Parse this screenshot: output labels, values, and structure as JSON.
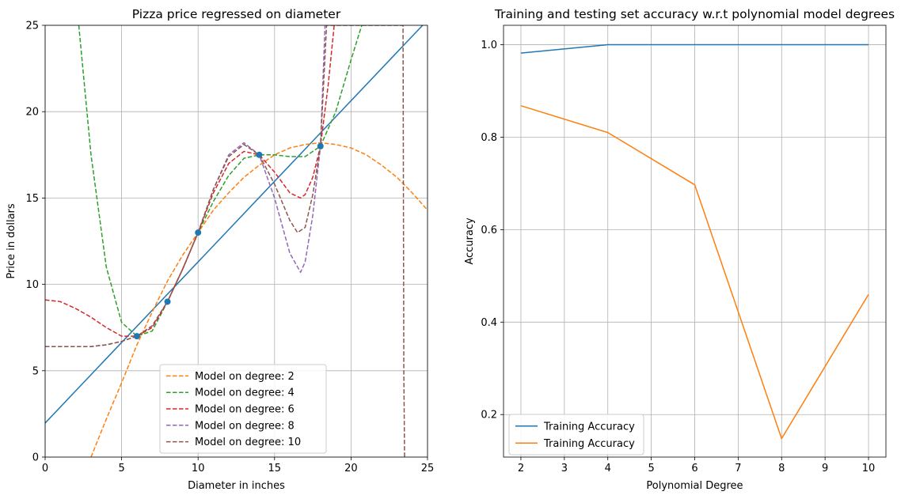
{
  "chart_data": [
    {
      "type": "line",
      "title": "Pizza price regressed on diameter",
      "xlabel": "Diameter in inches",
      "ylabel": "Price in dollars",
      "xlim": [
        0,
        25
      ],
      "ylim": [
        0,
        25
      ],
      "xticks": [
        0,
        5,
        10,
        15,
        20,
        25
      ],
      "yticks": [
        0,
        5,
        10,
        15,
        20,
        25
      ],
      "grid": true,
      "legend_position": "bottom-center",
      "scatter": {
        "color": "#1f77b4",
        "x": [
          6,
          8,
          10,
          14,
          18
        ],
        "y": [
          7,
          9,
          13,
          17.5,
          18
        ]
      },
      "linear_fit": {
        "color": "#1f77b4",
        "x": [
          0,
          25
        ],
        "y": [
          1.97,
          25.3
        ]
      },
      "series": [
        {
          "name": "Model on degree: 2",
          "color": "#ff7f0e",
          "x": [
            3.0,
            4,
            5,
            6,
            7,
            8,
            9,
            10,
            11,
            12,
            13,
            14,
            15,
            16,
            17,
            18,
            19,
            20,
            21,
            22,
            23,
            24,
            25
          ],
          "y": [
            0,
            2.2,
            4.3,
            6.5,
            8.4,
            10.2,
            11.7,
            13.0,
            14.3,
            15.3,
            16.2,
            16.9,
            17.5,
            17.9,
            18.1,
            18.2,
            18.1,
            17.9,
            17.5,
            16.9,
            16.2,
            15.3,
            14.3
          ]
        },
        {
          "name": "Model on degree: 4",
          "color": "#2ca02c",
          "x": [
            2.2,
            3,
            4,
            5,
            6,
            7,
            8,
            9,
            10,
            11,
            12,
            13,
            14,
            15,
            16,
            17,
            18,
            19,
            20,
            20.7
          ],
          "y": [
            25,
            17.5,
            11.0,
            7.8,
            7.0,
            7.3,
            9.0,
            10.9,
            13.0,
            14.8,
            16.3,
            17.3,
            17.5,
            17.5,
            17.4,
            17.4,
            18.0,
            20.0,
            23.0,
            25
          ]
        },
        {
          "name": "Model on degree: 6",
          "color": "#d62728",
          "x": [
            0,
            1,
            2,
            3,
            4,
            5,
            6,
            7,
            8,
            9,
            10,
            11,
            12,
            13,
            14,
            15,
            16,
            16.7,
            17,
            17.5,
            18,
            18.5,
            18.9
          ],
          "y": [
            9.1,
            9.0,
            8.6,
            8.1,
            7.5,
            7.0,
            7.0,
            7.5,
            9.0,
            10.9,
            13.0,
            15.3,
            17.0,
            17.7,
            17.5,
            16.5,
            15.3,
            15.0,
            15.2,
            16.2,
            18.0,
            21.5,
            25
          ]
        },
        {
          "name": "Model on degree: 8",
          "color": "#9467bd",
          "x": [
            0,
            1,
            2,
            3,
            4,
            5,
            6,
            7,
            8,
            9,
            10,
            11,
            12,
            13,
            14,
            15,
            16,
            16.7,
            17,
            17.5,
            18,
            18.3
          ],
          "y": [
            6.4,
            6.4,
            6.4,
            6.4,
            6.5,
            6.7,
            7.0,
            7.6,
            9.0,
            10.9,
            13.0,
            15.5,
            17.5,
            18.2,
            17.5,
            15.0,
            11.8,
            10.7,
            11.3,
            14.0,
            18.0,
            25
          ]
        },
        {
          "name": "Model on degree: 10",
          "color": "#8c564b",
          "x": [
            0,
            1,
            2,
            3,
            4,
            5,
            6,
            7,
            8,
            9,
            10,
            11,
            12,
            13,
            14,
            15,
            16,
            16.5,
            17,
            17.5,
            18,
            18.4,
            19,
            20,
            21,
            22,
            23,
            23.3,
            23.4,
            23.45,
            23.5
          ],
          "y": [
            6.4,
            6.4,
            6.4,
            6.4,
            6.5,
            6.7,
            7.0,
            7.6,
            9.0,
            10.9,
            13.0,
            15.5,
            17.4,
            18.1,
            17.5,
            15.8,
            13.7,
            13.0,
            13.3,
            15.2,
            18.0,
            25,
            25,
            25,
            25,
            25,
            25,
            25,
            25,
            5,
            0
          ]
        }
      ]
    },
    {
      "type": "line",
      "title": "Training and testing set accuracy w.r.t polynomial model degrees",
      "xlabel": "Polynomial Degree",
      "ylabel": "Accuracy",
      "xlim": [
        1.6,
        10.4
      ],
      "ylim": [
        0.108,
        1.042
      ],
      "xticks": [
        2,
        3,
        4,
        5,
        6,
        7,
        8,
        9,
        10
      ],
      "yticks": [
        0.2,
        0.4,
        0.6,
        0.8,
        1.0
      ],
      "ytick_labels": [
        "0.2",
        "0.4",
        "0.6",
        "0.8",
        "1.0"
      ],
      "grid": true,
      "legend_position": "bottom-left",
      "series": [
        {
          "name": "Training Accuracy",
          "color": "#1f77b4",
          "x": [
            2,
            4,
            6,
            8,
            10
          ],
          "y": [
            0.982,
            1.0,
            1.0,
            1.0,
            1.0
          ]
        },
        {
          "name": "Training Accuracy",
          "color": "#ff7f0e",
          "x": [
            2,
            4,
            6,
            8,
            10
          ],
          "y": [
            0.868,
            0.81,
            0.697,
            0.148,
            0.46
          ]
        }
      ]
    }
  ]
}
